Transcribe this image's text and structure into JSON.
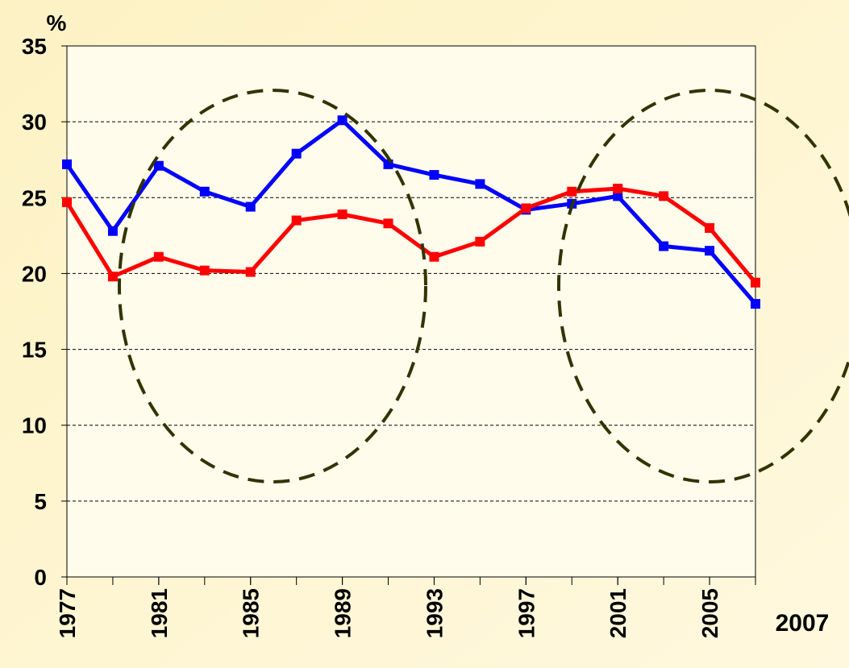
{
  "chart_data": {
    "type": "line",
    "y_label": "%",
    "x": [
      1977,
      1979,
      1981,
      1983,
      1985,
      1987,
      1989,
      1991,
      1993,
      1995,
      1997,
      1999,
      2001,
      2003,
      2005,
      2007
    ],
    "series": [
      {
        "color": "#0000ff",
        "values": [
          27.2,
          22.8,
          27.1,
          25.4,
          24.4,
          27.9,
          30.1,
          27.2,
          26.5,
          25.9,
          24.2,
          24.6,
          25.1,
          21.8,
          21.5,
          18.0
        ]
      },
      {
        "color": "#ff0000",
        "values": [
          24.7,
          19.8,
          21.1,
          20.2,
          20.1,
          23.5,
          23.9,
          23.3,
          21.1,
          22.1,
          24.3,
          25.4,
          25.6,
          25.1,
          23.0,
          19.4
        ]
      }
    ],
    "xlim": [
      1977,
      2007
    ],
    "xticks": [
      1977,
      1981,
      1985,
      1989,
      1993,
      1997,
      2001,
      2005,
      2007
    ],
    "ylim": [
      0,
      35
    ],
    "yticks": [
      0,
      5,
      10,
      15,
      20,
      25,
      30,
      35
    ],
    "grid": true
  }
}
